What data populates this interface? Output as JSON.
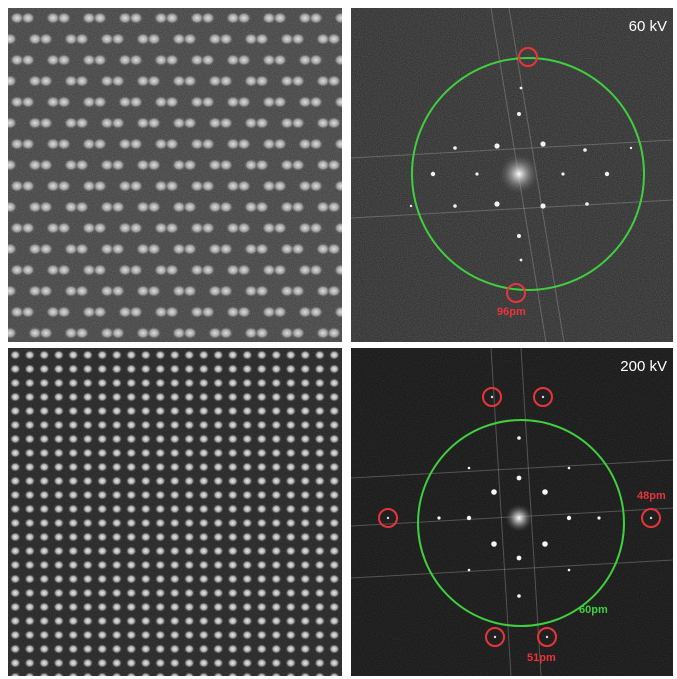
{
  "colors": {
    "annotation_red": "#e8353b",
    "resolution_circle_green": "#3fcf3f",
    "background": "#ffffff"
  },
  "panels": {
    "top_left": {
      "content": "lattice image, 60 kV"
    },
    "top_right": {
      "voltage_label": "60 kV",
      "resolution_label": "96pm"
    },
    "bottom_left": {
      "content": "lattice image, 200 kV"
    },
    "bottom_right": {
      "voltage_label": "200 kV",
      "outer_resolution_label": "48pm",
      "inner_resolution_label": "51pm",
      "circle_label": "60pm"
    }
  }
}
